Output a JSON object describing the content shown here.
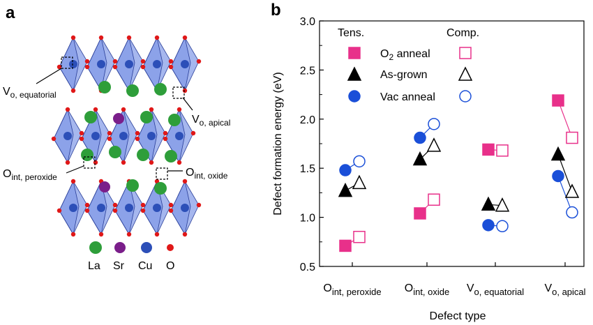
{
  "panel_a": {
    "label": "a",
    "annotations": [
      {
        "main": "V",
        "sub": "o, equatorial"
      },
      {
        "main": "V",
        "sub": "o, apical"
      },
      {
        "main": "O",
        "sub": "int, peroxide"
      },
      {
        "main": "O",
        "sub": "int, oxide"
      }
    ],
    "atom_legend": [
      {
        "name": "La",
        "color": "#2e9e3a"
      },
      {
        "name": "Sr",
        "color": "#7a1e8a"
      },
      {
        "name": "Cu",
        "color": "#2c4fb8"
      },
      {
        "name": "O",
        "color": "#e01818"
      }
    ],
    "colors": {
      "octahedron": "#5d7ce0",
      "octahedron_edge": "#2a3f99"
    }
  },
  "panel_b": {
    "label": "b",
    "legend": {
      "header_tens": "Tens.",
      "header_comp": "Comp.",
      "entries": [
        {
          "label_main": "O",
          "label_sub": "2",
          "label_rest": " anneal",
          "marker": "square",
          "color": "#e8308a"
        },
        {
          "label_main": "As-grown",
          "label_sub": "",
          "label_rest": "",
          "marker": "triangle",
          "color": "#000000"
        },
        {
          "label_main": "Vac anneal",
          "label_sub": "",
          "label_rest": "",
          "marker": "circle",
          "color": "#1a4fd8"
        }
      ]
    }
  },
  "chart_data": {
    "type": "scatter",
    "title": "",
    "xlabel": "Defect type",
    "ylabel": "Defect formation energy (eV)",
    "ylim": [
      0.5,
      3.0
    ],
    "yticks": [
      "0.5",
      "1.0",
      "1.5",
      "2.0",
      "2.5",
      "3.0"
    ],
    "categories": [
      {
        "main": "O",
        "sub": "int, peroxide"
      },
      {
        "main": "O",
        "sub": "int, oxide"
      },
      {
        "main": "V",
        "sub": "o, equatorial"
      },
      {
        "main": "V",
        "sub": "o, apical"
      }
    ],
    "series": [
      {
        "name": "O2 anneal",
        "marker": "square",
        "color": "#e8308a",
        "tens": [
          0.71,
          1.04,
          1.69,
          2.19
        ],
        "comp": [
          0.8,
          1.18,
          1.68,
          1.81
        ]
      },
      {
        "name": "As-grown",
        "marker": "triangle",
        "color": "#000000",
        "tens": [
          1.27,
          1.59,
          1.13,
          1.64
        ],
        "comp": [
          1.35,
          1.73,
          1.12,
          1.26
        ]
      },
      {
        "name": "Vac anneal",
        "marker": "circle",
        "color": "#1a4fd8",
        "tens": [
          1.48,
          1.81,
          0.92,
          1.42
        ],
        "comp": [
          1.57,
          1.95,
          0.91,
          1.05
        ]
      }
    ]
  }
}
